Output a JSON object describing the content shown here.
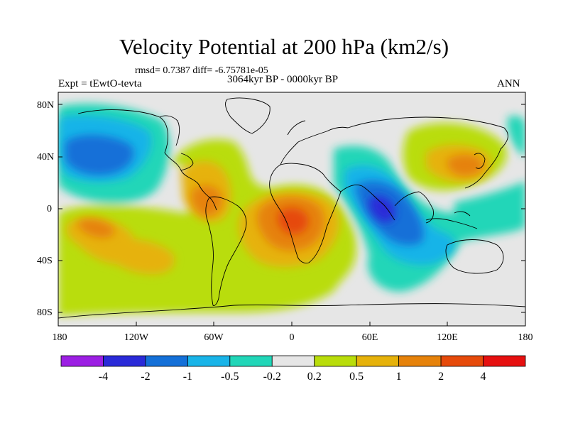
{
  "title": "Velocity Potential at 200 hPa (km2/s)",
  "stats": "rmsd= 0.7387 diff= -6.75781e-05",
  "experiment": "Expt = tEwtO-tevta",
  "period": "3064kyr BP - 0000kyr BP",
  "season": "ANN",
  "lat_labels": [
    "80N",
    "40N",
    "0",
    "40S",
    "80S"
  ],
  "lon_labels": [
    "180",
    "120W",
    "60W",
    "0",
    "60E",
    "120E",
    "180"
  ],
  "colorbar": {
    "colors": [
      "#9c1fe3",
      "#2a2ad8",
      "#1470d8",
      "#19b4e8",
      "#21d6b8",
      "#e6e6e6",
      "#b9dd0a",
      "#e6b20a",
      "#e6820a",
      "#e64a0a",
      "#e61010"
    ],
    "labels": [
      "-4",
      "-2",
      "-1",
      "-0.5",
      "-0.2",
      "0.2",
      "0.5",
      "1",
      "2",
      "4"
    ]
  },
  "colors": {
    "neutral": "#e6e6e6",
    "pos_05": "#b9dd0a",
    "pos_1": "#e6b20a",
    "pos_2": "#e6820a",
    "pos_4": "#e64a0a",
    "neg_02": "#21d6b8",
    "neg_05": "#19b4e8",
    "neg_1": "#1470d8",
    "neg_2": "#2a2ad8"
  }
}
